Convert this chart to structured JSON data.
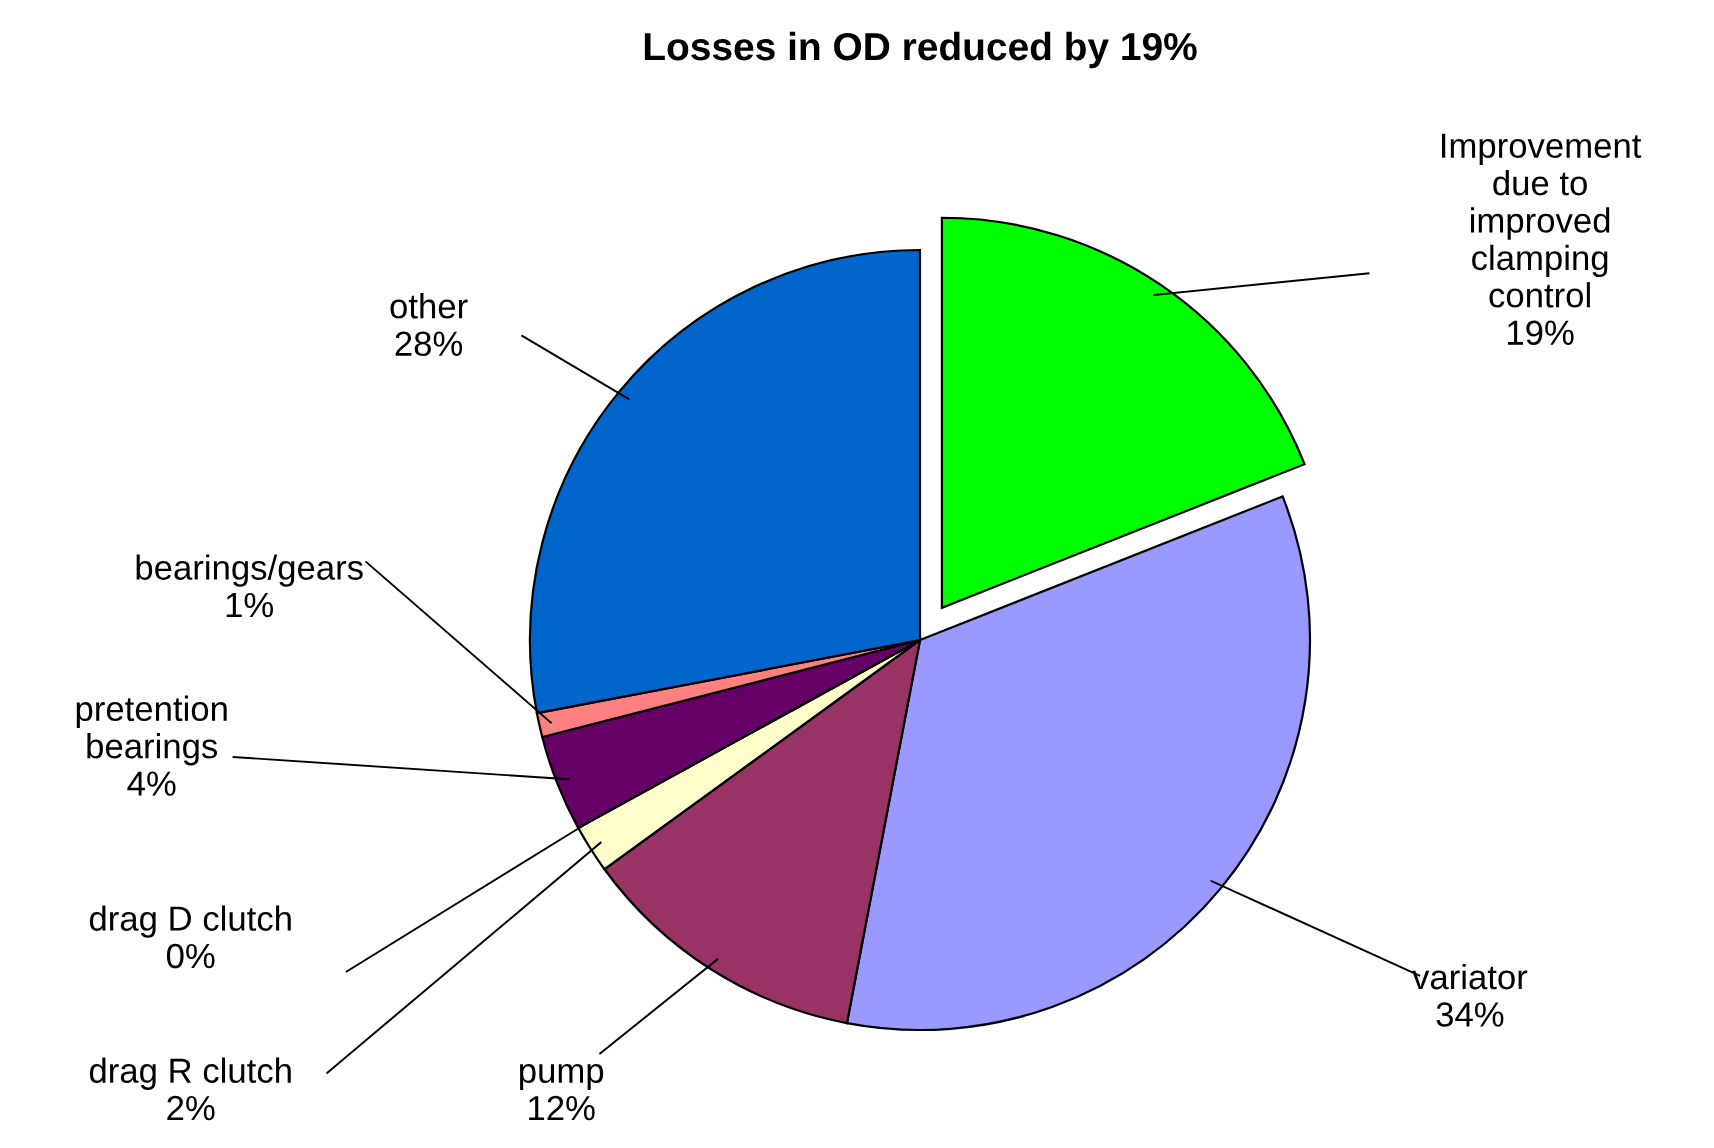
{
  "chart_data": {
    "type": "pie",
    "title": "Losses in OD reduced by 19%",
    "categories": [
      "Improvement\ndue to\nimproved\nclamping\ncontrol",
      "variator",
      "pump",
      "drag R clutch",
      "drag D clutch",
      "pretention\nbearings",
      "bearings/gears",
      "other"
    ],
    "values": [
      19,
      34,
      12,
      2,
      0,
      4,
      1,
      28
    ],
    "value_labels": [
      "19%",
      "34%",
      "12%",
      "2%",
      "0%",
      "4%",
      "1%",
      "28%"
    ],
    "colors": [
      "#00ff00",
      "#9999ff",
      "#993366",
      "#ffffcc",
      "#ccffff",
      "#660066",
      "#ff8080",
      "#0066cc"
    ],
    "legend": false
  }
}
